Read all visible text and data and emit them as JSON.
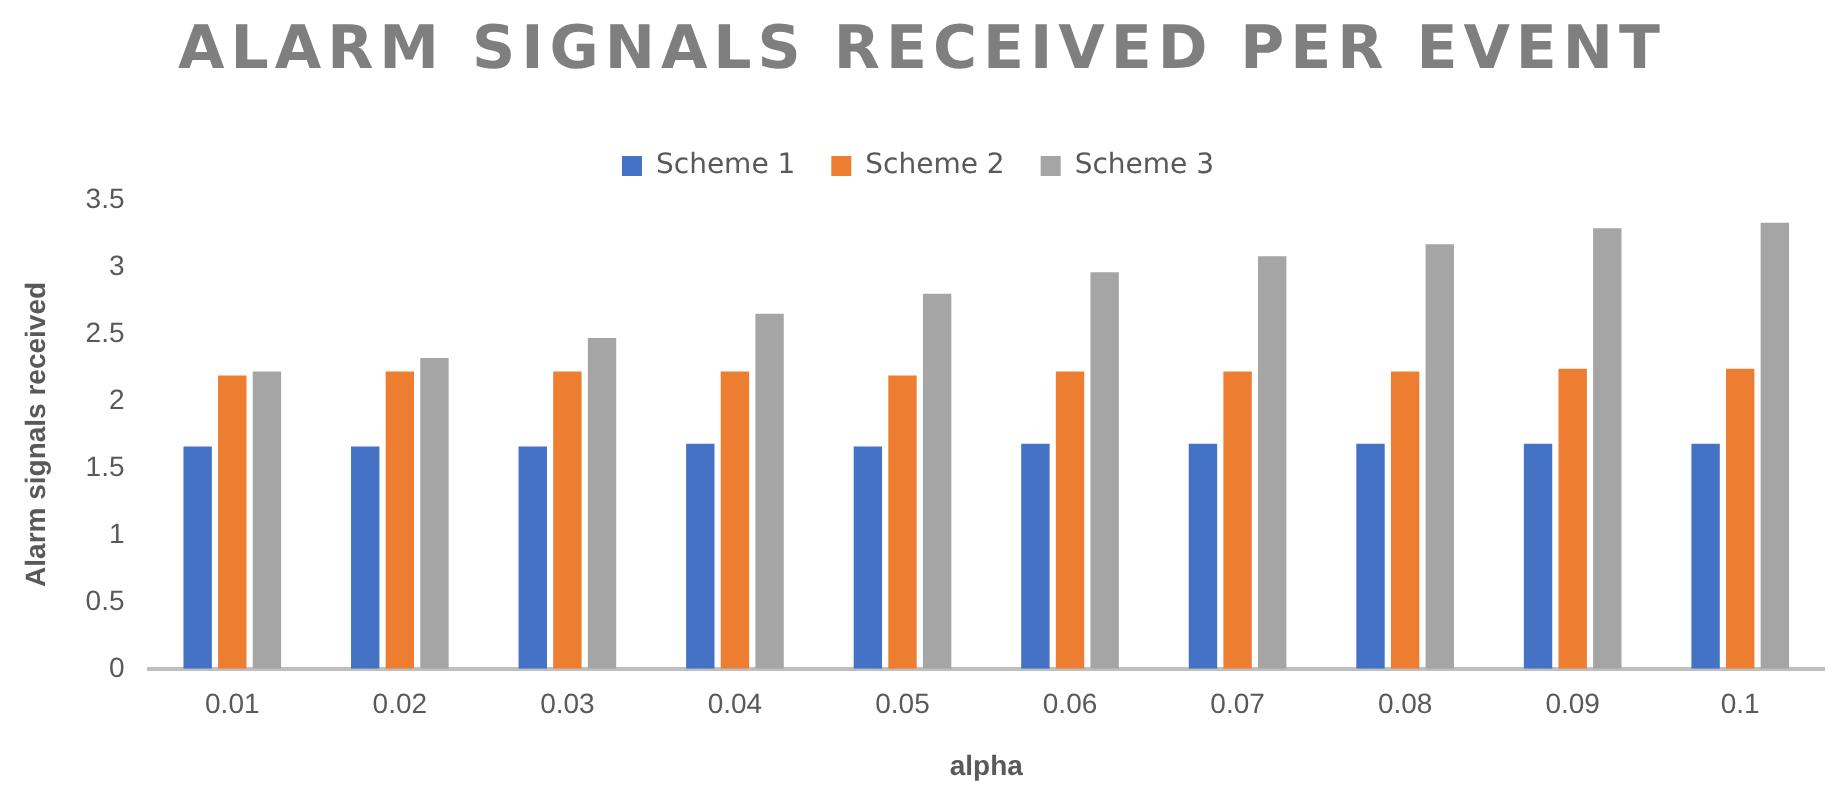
{
  "chart_data": {
    "type": "bar",
    "title": "ALARM SIGNALS RECEIVED PER EVENT",
    "xlabel": "alpha",
    "ylabel": "Alarm signals received",
    "categories": [
      "0.01",
      "0.02",
      "0.03",
      "0.04",
      "0.05",
      "0.06",
      "0.07",
      "0.08",
      "0.09",
      "0.1"
    ],
    "series": [
      {
        "name": "Scheme 1",
        "color": "#4472c4",
        "values": [
          1.66,
          1.66,
          1.66,
          1.68,
          1.66,
          1.68,
          1.68,
          1.68,
          1.68,
          1.68
        ]
      },
      {
        "name": "Scheme 2",
        "color": "#ed7d31",
        "values": [
          2.19,
          2.22,
          2.22,
          2.22,
          2.19,
          2.22,
          2.22,
          2.22,
          2.24,
          2.24
        ]
      },
      {
        "name": "Scheme 3",
        "color": "#a5a5a5",
        "values": [
          2.22,
          2.32,
          2.47,
          2.65,
          2.8,
          2.96,
          3.08,
          3.17,
          3.29,
          3.33
        ]
      }
    ],
    "ylim": [
      0,
      3.5
    ],
    "yticks": [
      0,
      0.5,
      1,
      1.5,
      2,
      2.5,
      3,
      3.5
    ],
    "grid": false,
    "legend": "top"
  }
}
